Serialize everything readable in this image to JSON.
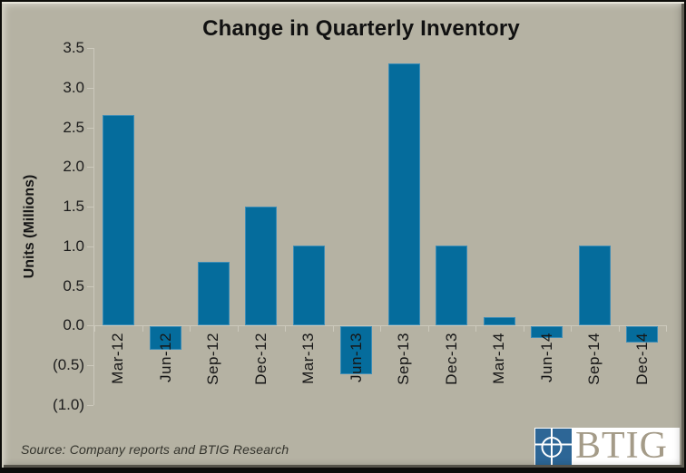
{
  "title": "Change in Quarterly Inventory",
  "source_note": "Source: Company reports and BTIG Research",
  "logo": {
    "wordmark": "BTIG",
    "icon": "btig-globe-crosshair-icon",
    "icon_color": "#2d6696",
    "wordmark_color": "#a49b88",
    "band_background": "#ffffff"
  },
  "chart_data": {
    "type": "bar",
    "title": "Change in Quarterly Inventory",
    "ylabel": "Units (Millions)",
    "xlabel": "",
    "categories": [
      "Mar-12",
      "Jun-12",
      "Sep-12",
      "Dec-12",
      "Mar-13",
      "Jun-13",
      "Sep-13",
      "Dec-13",
      "Mar-14",
      "Jun-14",
      "Sep-14",
      "Dec-14"
    ],
    "values": [
      2.65,
      -0.3,
      0.8,
      1.5,
      1.0,
      -0.6,
      3.3,
      1.0,
      0.1,
      -0.15,
      1.0,
      -0.2
    ],
    "ylim": [
      -1.0,
      3.5
    ],
    "y_tick_step": 0.5,
    "y_tick_labels": [
      "3.5",
      "3.0",
      "2.5",
      "2.0",
      "1.5",
      "1.0",
      "0.5",
      "0.0",
      "(0.5)",
      "(1.0)"
    ],
    "negative_label_format": "parentheses",
    "grid": false,
    "legend": "none",
    "bar_color": "#056c9c",
    "bar_border_color": "#3c8cb6",
    "axis_color": "#ccc9bc",
    "background_color": "#b5b2a3"
  },
  "colors": {
    "background": "#b5b2a3",
    "bar": "#056c9c",
    "text": "#1f1f1f",
    "frame_outline": "#0c0c0a"
  }
}
